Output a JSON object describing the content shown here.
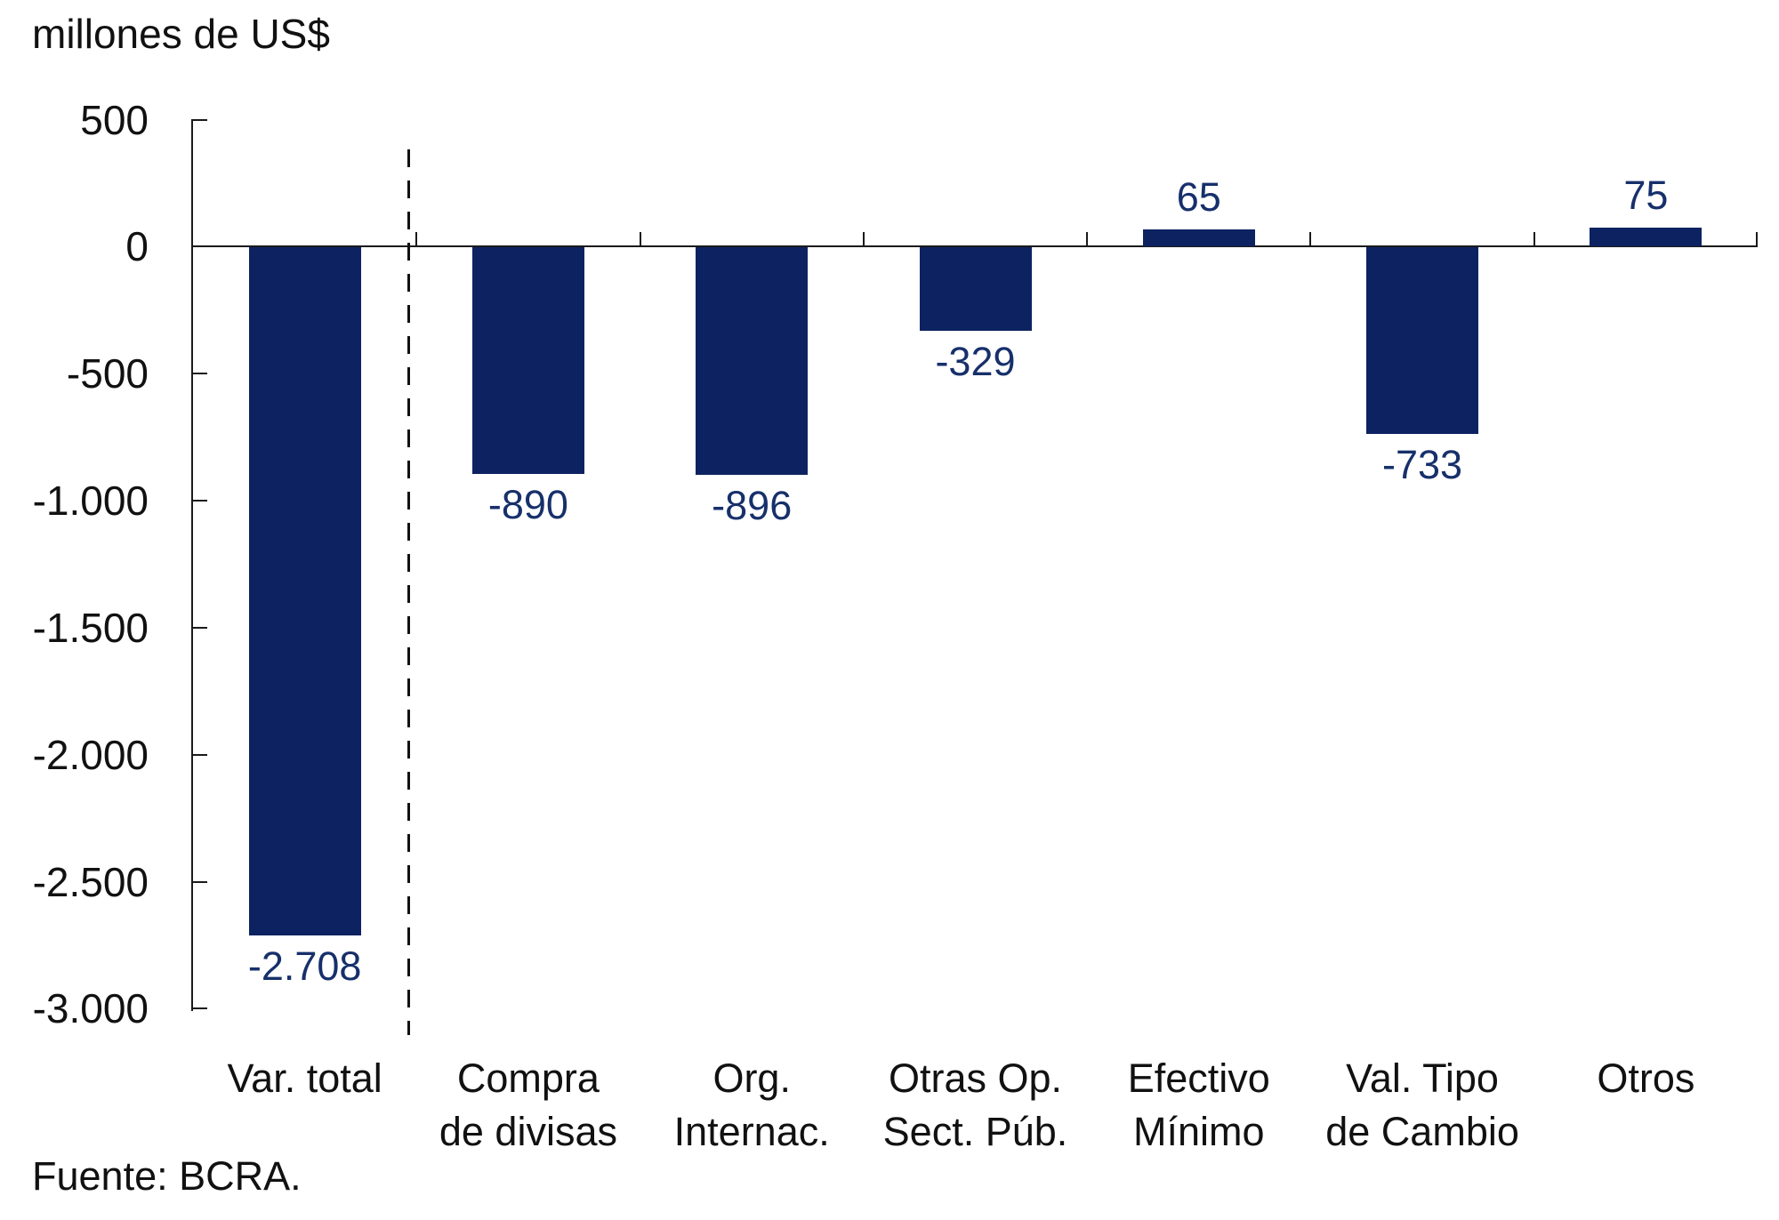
{
  "title": "millones de US$",
  "source": "Fuente: BCRA.",
  "colors": {
    "bar": "#0d2361",
    "value_label": "#17306b",
    "axis": "#1a1a1a",
    "text": "#111111"
  },
  "chart_data": {
    "type": "bar",
    "title": "millones de US$",
    "ylabel": "millones de US$",
    "xlabel": "",
    "ylim": [
      -3000,
      500
    ],
    "grid": false,
    "legend": false,
    "ytick_values": [
      500,
      0,
      -500,
      -1000,
      -1500,
      -2000,
      -2500,
      -3000
    ],
    "ytick_labels": [
      "500",
      "0",
      "-500",
      "-1.000",
      "-1.500",
      "-2.000",
      "-2.500",
      "-3.000"
    ],
    "categories": [
      "Var. total",
      "Compra\nde divisas",
      "Org.\nInternac.",
      "Otras Op.\nSect. Púb.",
      "Efectivo\nMínimo",
      "Val. Tipo\nde Cambio",
      "Otros"
    ],
    "values": [
      -2708,
      -890,
      -896,
      -329,
      65,
      -733,
      75
    ],
    "value_labels": [
      "-2.708",
      "-890",
      "-896",
      "-329",
      "65",
      "-733",
      "75"
    ],
    "annotations": {
      "dashed_separator_after_category": "Var. total"
    }
  }
}
